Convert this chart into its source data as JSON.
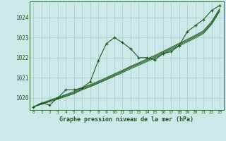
{
  "title": "Graphe pression niveau de la mer (hPa)",
  "bg_color": "#cce8e8",
  "grid_color": "#aacccc",
  "line_color": "#1a5c1a",
  "marker_color": "#1a5c1a",
  "x_labels": [
    "0",
    "1",
    "2",
    "3",
    "4",
    "5",
    "6",
    "7",
    "8",
    "9",
    "10",
    "11",
    "12",
    "13",
    "14",
    "15",
    "16",
    "17",
    "18",
    "19",
    "20",
    "21",
    "22",
    "23"
  ],
  "ylim": [
    1019.4,
    1024.8
  ],
  "yticks": [
    1020,
    1021,
    1022,
    1023,
    1024
  ],
  "series": {
    "main": [
      1019.55,
      1019.75,
      1019.65,
      1020.0,
      1020.4,
      1020.4,
      1020.5,
      1020.8,
      1021.85,
      1022.7,
      1023.0,
      1022.75,
      1022.45,
      1022.0,
      1022.0,
      1021.9,
      1022.2,
      1022.3,
      1022.6,
      1023.3,
      1023.6,
      1023.9,
      1024.35,
      1024.6
    ],
    "trend1": [
      1019.55,
      1019.68,
      1019.81,
      1019.94,
      1020.07,
      1020.2,
      1020.4,
      1020.55,
      1020.72,
      1020.9,
      1021.08,
      1021.25,
      1021.45,
      1021.62,
      1021.8,
      1021.98,
      1022.18,
      1022.38,
      1022.58,
      1022.78,
      1022.98,
      1023.2,
      1023.65,
      1024.3
    ],
    "trend2": [
      1019.55,
      1019.7,
      1019.83,
      1019.97,
      1020.1,
      1020.24,
      1020.43,
      1020.58,
      1020.75,
      1020.93,
      1021.12,
      1021.3,
      1021.5,
      1021.67,
      1021.85,
      1022.03,
      1022.23,
      1022.43,
      1022.63,
      1022.83,
      1023.03,
      1023.25,
      1023.7,
      1024.35
    ],
    "trend3": [
      1019.55,
      1019.72,
      1019.86,
      1020.0,
      1020.14,
      1020.28,
      1020.47,
      1020.62,
      1020.79,
      1020.97,
      1021.16,
      1021.34,
      1021.54,
      1021.71,
      1021.9,
      1022.08,
      1022.28,
      1022.48,
      1022.68,
      1022.88,
      1023.08,
      1023.3,
      1023.75,
      1024.4
    ],
    "trend4": [
      1019.55,
      1019.74,
      1019.89,
      1020.03,
      1020.17,
      1020.32,
      1020.51,
      1020.66,
      1020.83,
      1021.01,
      1021.2,
      1021.38,
      1021.58,
      1021.75,
      1021.94,
      1022.12,
      1022.32,
      1022.52,
      1022.72,
      1022.92,
      1023.12,
      1023.35,
      1023.8,
      1024.45
    ]
  }
}
